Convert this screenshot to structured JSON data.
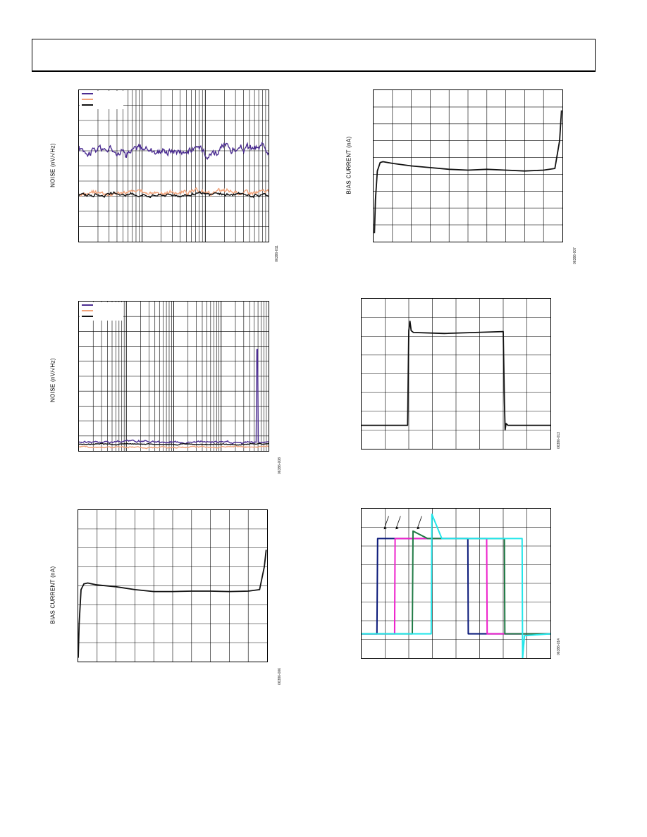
{
  "page": {
    "header_box": true
  },
  "figures": [
    {
      "id": "fig-noise-1",
      "figure_id": "06386-011",
      "ylabel": "NOISE (nV/√Hz)"
    },
    {
      "id": "fig-bias-1",
      "figure_id": "06386-007",
      "ylabel": "BIAS CURRENT (nA)"
    },
    {
      "id": "fig-noise-2",
      "figure_id": "06386-008",
      "ylabel": "NOISE (nV/√Hz)"
    },
    {
      "id": "fig-step-1",
      "figure_id": "06386-013",
      "ylabel": ""
    },
    {
      "id": "fig-bias-2",
      "figure_id": "06386-006",
      "ylabel": "BIAS CURRENT (nA)"
    },
    {
      "id": "fig-step-2",
      "figure_id": "06386-014",
      "ylabel": ""
    }
  ],
  "chart_data": [
    {
      "id": "fig-noise-1",
      "type": "line",
      "x_scale": "log",
      "x_decades": 3,
      "ylim": [
        0,
        10
      ],
      "grid": true,
      "legend": "top-left",
      "legend_colors": [
        "#4b2c91",
        "#f2a37a",
        "#111111"
      ],
      "series": [
        {
          "color": "#4b2c91",
          "level": 6.1,
          "jitter": 0.35
        },
        {
          "color": "#f2a37a",
          "level": 3.25,
          "jitter": 0.18
        },
        {
          "color": "#111111",
          "level": 3.1,
          "jitter": 0.12
        }
      ]
    },
    {
      "id": "fig-bias-1",
      "type": "line",
      "xlim": [
        0,
        10
      ],
      "ylim": [
        0,
        9
      ],
      "grid": true,
      "x": [
        0.05,
        0.1,
        0.2,
        0.35,
        0.5,
        1,
        2,
        3,
        4,
        5,
        6,
        7,
        8,
        9,
        9.6,
        9.85,
        9.95
      ],
      "y": [
        0.5,
        2.5,
        4.2,
        4.7,
        4.75,
        4.65,
        4.5,
        4.4,
        4.3,
        4.25,
        4.3,
        4.25,
        4.2,
        4.25,
        4.35,
        6.0,
        7.8
      ]
    },
    {
      "id": "fig-noise-2",
      "type": "line",
      "x_scale": "log",
      "x_decades": 4,
      "ylim": [
        0,
        10
      ],
      "grid": true,
      "legend": "top-left",
      "legend_colors": [
        "#4b2c91",
        "#f2a37a",
        "#111111"
      ],
      "series": [
        {
          "color": "#4b2c91",
          "level": 0.6,
          "jitter": 0.08,
          "spike_at": 0.94,
          "spike_height": 6.2
        },
        {
          "color": "#f2a37a",
          "level": 0.25,
          "jitter": 0.06
        },
        {
          "color": "#111111",
          "level": 0.45,
          "jitter": 0.04
        }
      ]
    },
    {
      "id": "fig-step-1",
      "type": "line",
      "xlim": [
        0,
        8
      ],
      "ylim": [
        0,
        8
      ],
      "grid": true,
      "series": [
        {
          "color": "#111111",
          "x": [
            0,
            1.95,
            2.0,
            2.05,
            2.1,
            2.2,
            3.5,
            6.0,
            6.05,
            6.08,
            6.12,
            6.2,
            8.0
          ],
          "y": [
            1.25,
            1.25,
            6.3,
            6.8,
            6.3,
            6.2,
            6.15,
            6.25,
            2.5,
            1.0,
            1.35,
            1.25,
            1.25
          ]
        }
      ]
    },
    {
      "id": "fig-bias-2",
      "type": "line",
      "xlim": [
        0,
        10
      ],
      "ylim": [
        0,
        8
      ],
      "grid": true,
      "x": [
        0.0,
        0.05,
        0.15,
        0.3,
        0.5,
        1,
        2,
        3,
        4,
        5,
        6,
        7,
        8,
        9,
        9.6,
        9.85,
        9.95
      ],
      "y": [
        0.2,
        2.0,
        3.8,
        4.1,
        4.15,
        4.05,
        3.95,
        3.8,
        3.7,
        3.7,
        3.72,
        3.72,
        3.7,
        3.72,
        3.8,
        5.0,
        5.9
      ]
    },
    {
      "id": "fig-step-2",
      "type": "line",
      "xlim": [
        0,
        8
      ],
      "ylim": [
        0,
        8
      ],
      "grid": true,
      "annotations": "arrows",
      "series": [
        {
          "color": "#0b1a7a",
          "x": [
            0,
            0.65,
            0.68,
            1.3,
            4.5,
            4.52,
            4.6,
            8
          ],
          "y": [
            1.3,
            1.3,
            6.4,
            6.4,
            6.4,
            1.3,
            1.3,
            1.3
          ]
        },
        {
          "color": "#ee22cc",
          "x": [
            0,
            1.4,
            1.42,
            2.0,
            5.3,
            5.32,
            5.4,
            8
          ],
          "y": [
            1.3,
            1.3,
            6.4,
            6.4,
            6.4,
            1.3,
            1.3,
            1.3
          ]
        },
        {
          "color": "#1f7a44",
          "x": [
            0,
            2.15,
            2.18,
            2.8,
            6.05,
            6.07,
            6.2,
            8
          ],
          "y": [
            1.3,
            1.3,
            6.8,
            6.4,
            6.4,
            1.3,
            1.3,
            1.3
          ]
        },
        {
          "color": "#22e6ea",
          "x": [
            0,
            2.95,
            2.98,
            3.4,
            6.8,
            6.82,
            6.9,
            8
          ],
          "y": [
            1.3,
            1.3,
            7.7,
            6.4,
            6.4,
            0.0,
            1.2,
            1.3
          ]
        }
      ]
    }
  ]
}
